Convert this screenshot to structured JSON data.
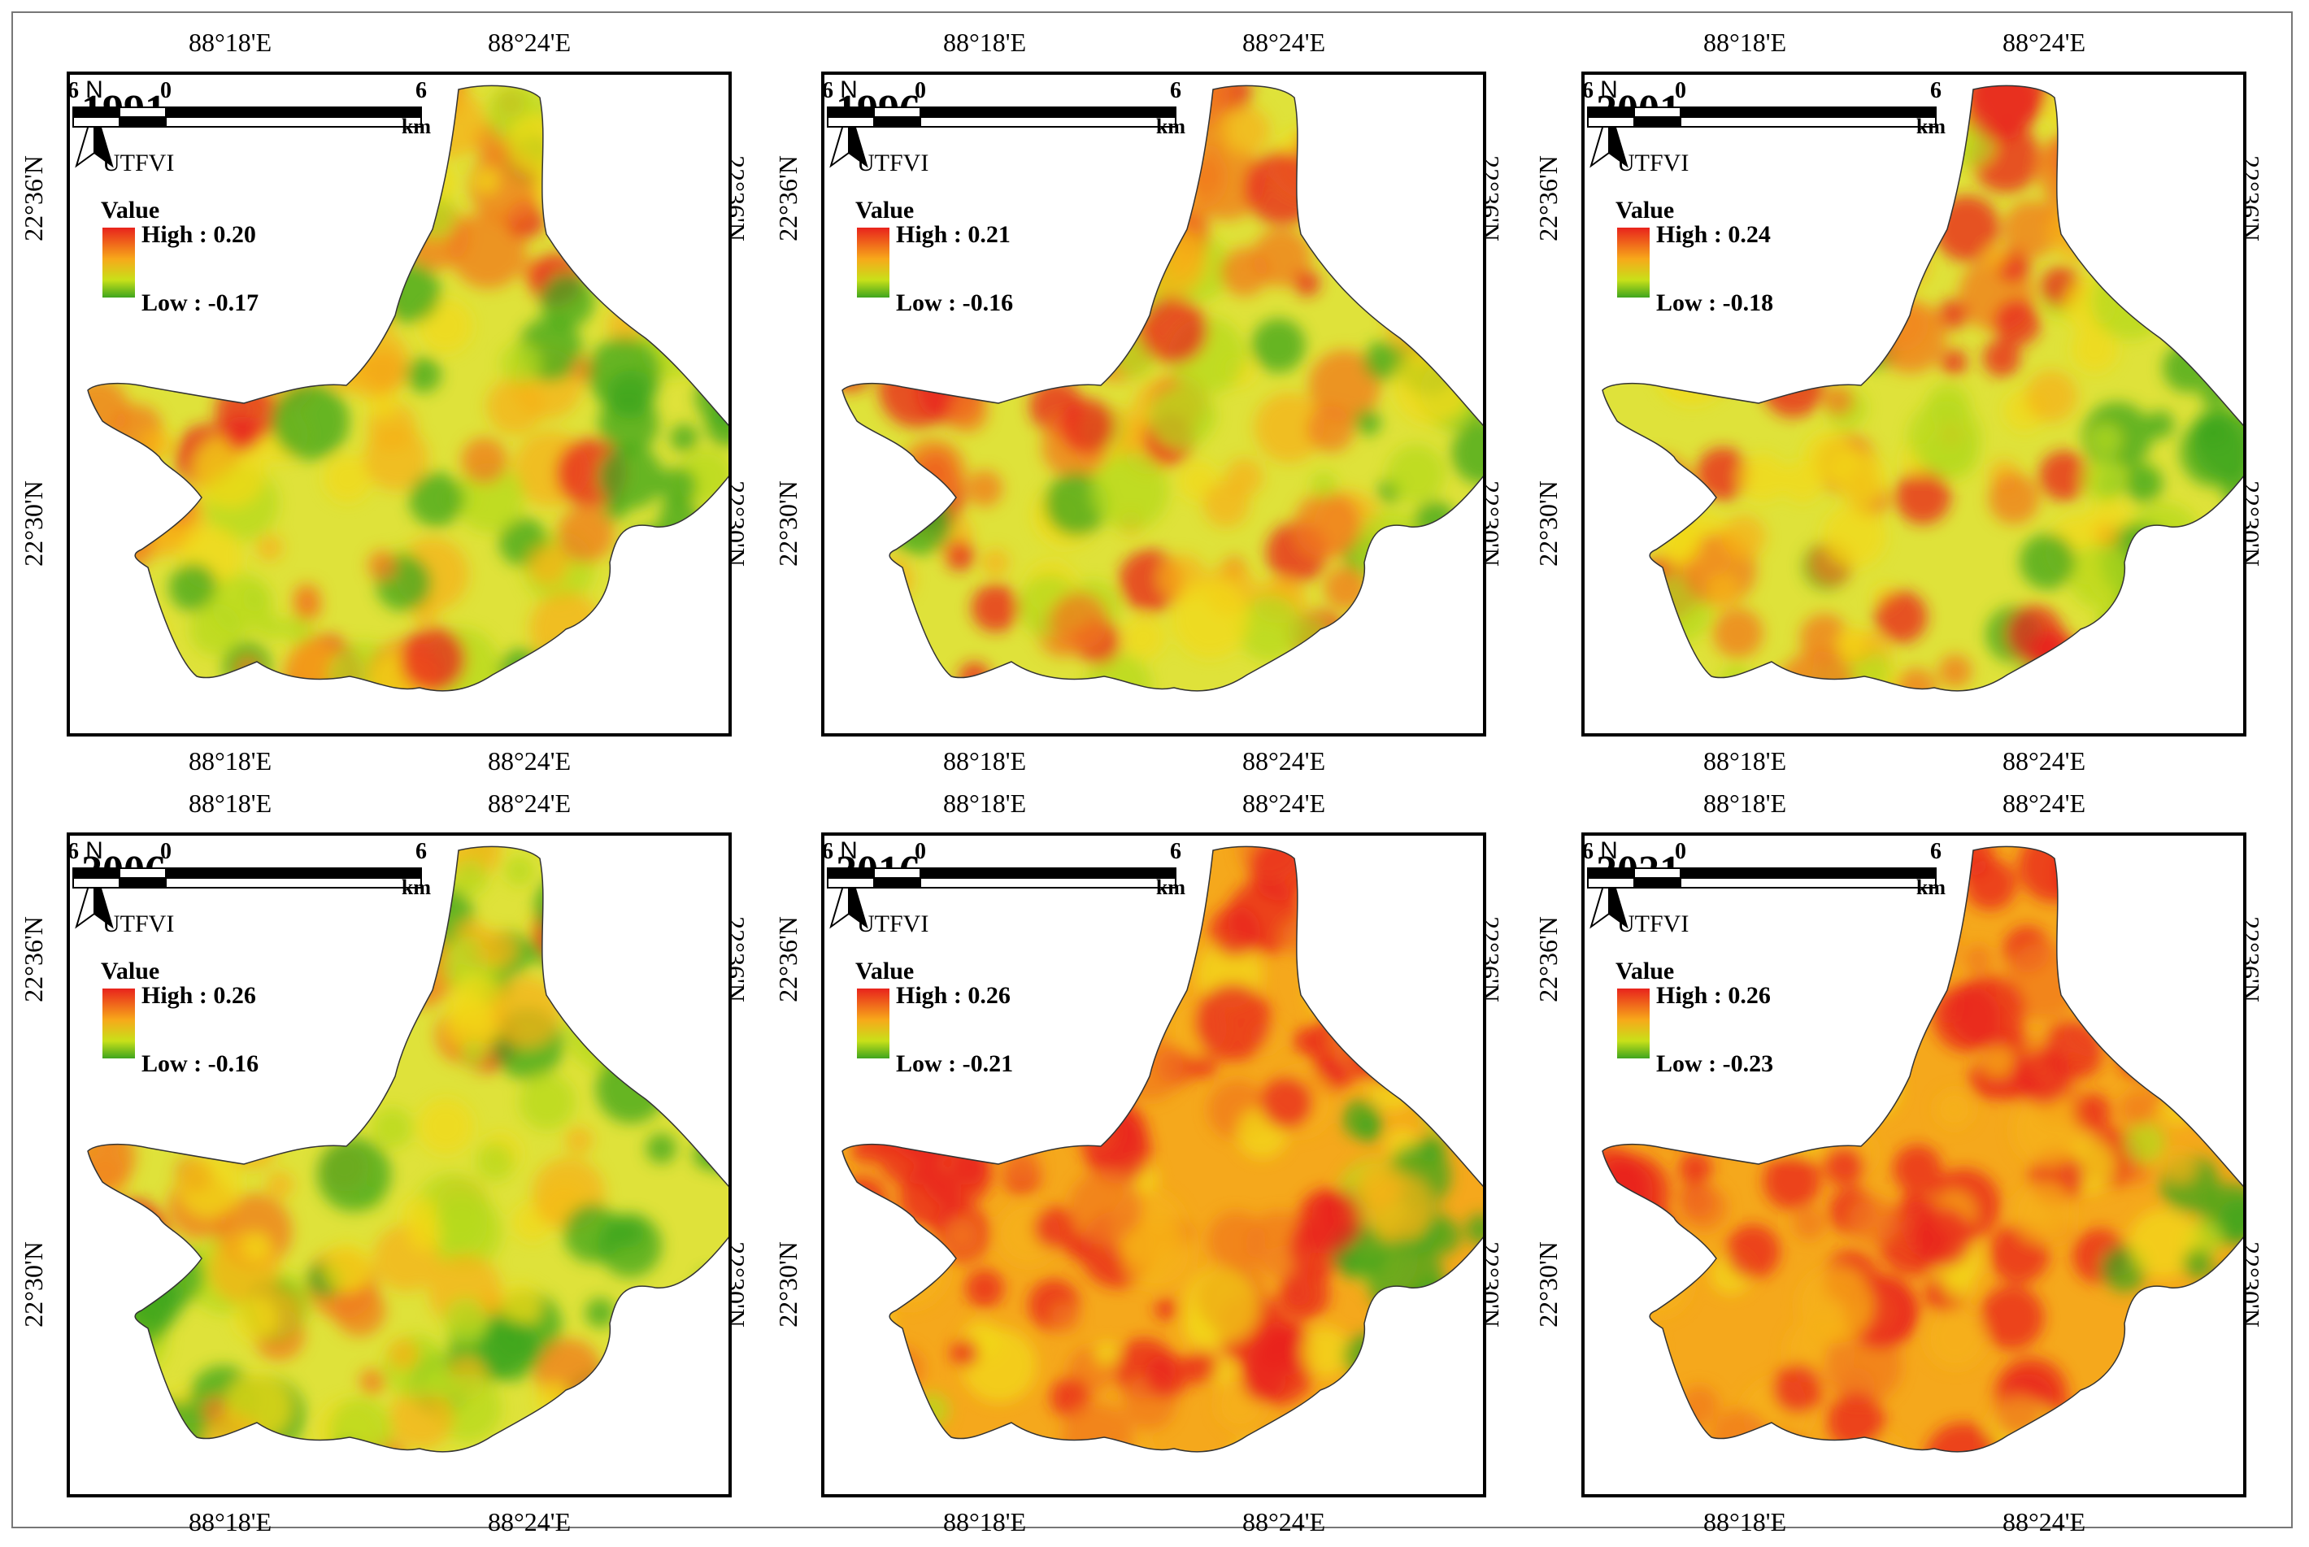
{
  "figure": {
    "grid": {
      "lon_ticks": [
        "88°18'E",
        "88°24'E"
      ],
      "lat_ticks": [
        "22°36'N",
        "22°30'N"
      ]
    },
    "legend": {
      "title": "UTFVI",
      "value_label": "Value",
      "high_prefix": "High : ",
      "low_prefix": "Low : "
    },
    "north_label": "N",
    "scale": {
      "left_label": "6",
      "mid_label": "0",
      "right_label": "6",
      "unit": "km"
    },
    "colors": {
      "high": "#e8231c",
      "mid": "#f2d81a",
      "low": "#3fa51e",
      "frame": "#000000"
    },
    "panels": [
      {
        "year": "1991",
        "high": "0.20",
        "low": "-0.17",
        "warmth": 0.45
      },
      {
        "year": "1996",
        "high": "0.21",
        "low": "-0.16",
        "warmth": 0.55
      },
      {
        "year": "2001",
        "high": "0.24",
        "low": "-0.18",
        "warmth": 0.55
      },
      {
        "year": "2006",
        "high": "0.26",
        "low": "-0.16",
        "warmth": 0.35
      },
      {
        "year": "2016",
        "high": "0.26",
        "low": "-0.21",
        "warmth": 0.75
      },
      {
        "year": "2021",
        "high": "0.26",
        "low": "-0.23",
        "warmth": 0.85
      }
    ]
  }
}
